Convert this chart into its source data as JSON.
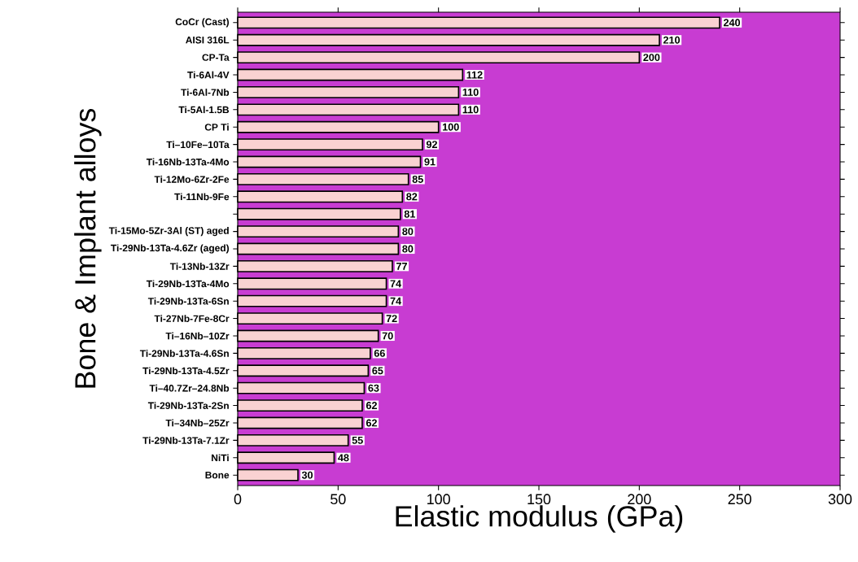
{
  "chart_data": {
    "type": "bar",
    "orientation": "horizontal",
    "xlabel": "Elastic modulus (GPa)",
    "ylabel": "Bone & Implant alloys",
    "categories": [
      "CoCr (Cast)",
      "AISI 316L",
      "CP-Ta",
      "Ti-6Al-4V",
      "Ti-6Al-7Nb",
      "Ti-5Al-1.5B",
      "CP Ti",
      "Ti–10Fe–10Ta",
      "Ti-16Nb-13Ta-4Mo",
      "Ti-12Mo-6Zr-2Fe",
      "Ti-11Nb-9Fe",
      null,
      "Ti-15Mo-5Zr-3Al (ST) aged",
      "Ti-29Nb-13Ta-4.6Zr (aged)",
      "Ti-13Nb-13Zr",
      "Ti-29Nb-13Ta-4Mo",
      "Ti-29Nb-13Ta-6Sn",
      "Ti-27Nb-7Fe-8Cr",
      "Ti–16Nb–10Zr",
      "Ti-29Nb-13Ta-4.6Sn",
      "Ti-29Nb-13Ta-4.5Zr",
      "Ti–40.7Zr–24.8Nb",
      "Ti-29Nb-13Ta-2Sn",
      "Ti–34Nb–25Zr",
      "Ti-29Nb-13Ta-7.1Zr",
      "NiTi",
      "Bone"
    ],
    "values": [
      240,
      210,
      200,
      112,
      110,
      110,
      100,
      92,
      91,
      85,
      82,
      81,
      80,
      80,
      77,
      74,
      74,
      72,
      70,
      66,
      65,
      63,
      62,
      62,
      55,
      48,
      30
    ],
    "color": "#f9d2d2",
    "data_labels": true,
    "xlim": [
      0,
      300
    ],
    "xticks": [
      0,
      50,
      100,
      150,
      200,
      250,
      300
    ]
  }
}
